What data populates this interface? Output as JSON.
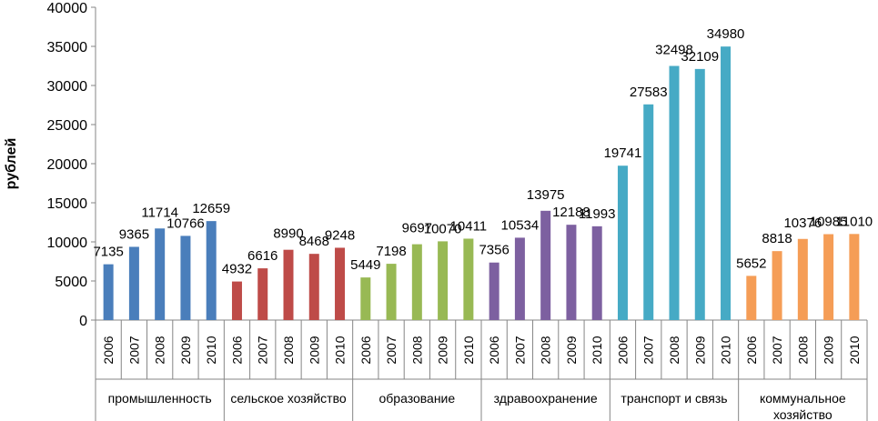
{
  "chart_data": {
    "type": "bar",
    "ylabel": "рублей",
    "ylim": [
      0,
      40000
    ],
    "yticks": [
      0,
      5000,
      10000,
      15000,
      20000,
      25000,
      30000,
      35000,
      40000
    ],
    "grid": false,
    "groups": [
      {
        "name": "промышленность",
        "color": "#4a7ebb",
        "years": [
          "2006",
          "2007",
          "2008",
          "2009",
          "2010"
        ],
        "values": [
          7135,
          9365,
          11714,
          10766,
          12659
        ]
      },
      {
        "name": "сельское хозяйство",
        "color": "#be4b48",
        "years": [
          "2006",
          "2007",
          "2008",
          "2009",
          "2010"
        ],
        "values": [
          4932,
          6616,
          8990,
          8468,
          9248
        ]
      },
      {
        "name": "образование",
        "color": "#98b954",
        "years": [
          "2006",
          "2007",
          "2008",
          "2009",
          "2010"
        ],
        "values": [
          5449,
          7198,
          9697,
          10070,
          10411
        ]
      },
      {
        "name": "здравоохранение",
        "color": "#7d60a0",
        "years": [
          "2006",
          "2007",
          "2008",
          "2009",
          "2010"
        ],
        "values": [
          7356,
          10534,
          13975,
          12188,
          11993
        ]
      },
      {
        "name": "транспорт и связь",
        "color": "#46aac5",
        "years": [
          "2006",
          "2007",
          "2008",
          "2009",
          "2010"
        ],
        "values": [
          19741,
          27583,
          32498,
          32109,
          34980
        ]
      },
      {
        "name": "коммунальное хозяйство",
        "color": "#f59d56",
        "years": [
          "2006",
          "2007",
          "2008",
          "2009",
          "2010"
        ],
        "values": [
          5652,
          8818,
          10376,
          10985,
          11010
        ]
      }
    ]
  }
}
